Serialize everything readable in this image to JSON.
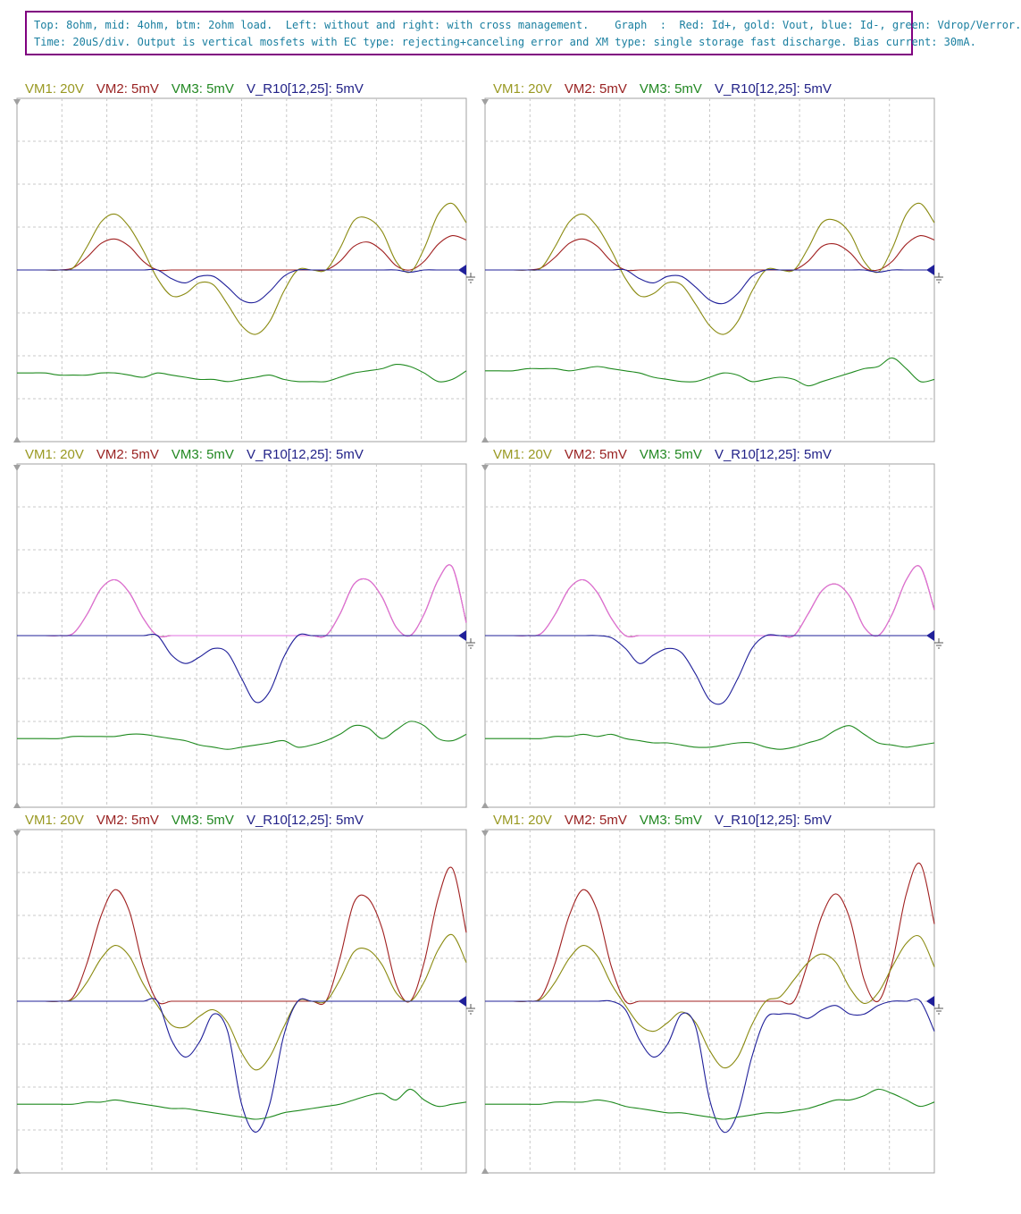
{
  "caption": {
    "line1": "Top: 8ohm, mid: 4ohm, btm: 2ohm load.  Left: without and right: with cross management.    Graph  :  Red: Id+, gold: Vout, blue: Id-, green: Vdrop/Verror.",
    "line2": "Time: 20uS/div. Output is vertical mosfets with EC type: rejecting+canceling error and XM type: single storage fast discharge. Bias current: 30mA."
  },
  "legend": [
    {
      "text": "VM1: 20V",
      "color": "#999922"
    },
    {
      "text": "VM2: 5mV",
      "color": "#992222"
    },
    {
      "text": "VM3: 5mV",
      "color": "#228822"
    },
    {
      "text": "V_R10[12,25]: 5mV",
      "color": "#222288"
    }
  ],
  "colors": {
    "red": "#a02020",
    "gold": "#8a8a10",
    "blue": "#20209a",
    "green": "#1f8a1f",
    "grid": "#c8c8c8",
    "pink": "#e070e0"
  },
  "chart_data": [
    {
      "type": "line",
      "panel": "top-left",
      "load": "8ohm",
      "cross_management": false,
      "x_divisions": 10,
      "y_divisions": 8,
      "zero_division": 4,
      "series": [
        {
          "color": "red",
          "values": [
            0,
            0,
            0,
            0,
            0.05,
            0.3,
            0.62,
            0.72,
            0.55,
            0.2,
            0,
            0,
            0,
            0,
            0,
            0,
            0,
            0,
            0,
            0,
            0,
            0,
            0,
            0.2,
            0.55,
            0.65,
            0.45,
            0.1,
            0,
            0.2,
            0.6,
            0.8,
            0.7
          ]
        },
        {
          "color": "gold",
          "values": [
            0,
            0,
            0,
            0,
            0.05,
            0.55,
            1.12,
            1.3,
            1.0,
            0.45,
            -0.2,
            -0.6,
            -0.55,
            -0.3,
            -0.35,
            -0.8,
            -1.3,
            -1.5,
            -1.2,
            -0.5,
            0,
            0,
            0,
            0.5,
            1.15,
            1.2,
            0.9,
            0.2,
            -0.05,
            0.5,
            1.3,
            1.55,
            1.1
          ]
        },
        {
          "color": "blue",
          "values": [
            0,
            0,
            0,
            0,
            0,
            0,
            0,
            0,
            0,
            0,
            0,
            -0.2,
            -0.3,
            -0.15,
            -0.15,
            -0.4,
            -0.7,
            -0.75,
            -0.5,
            -0.15,
            0,
            0,
            0,
            0,
            0,
            0,
            0,
            0,
            -0.05,
            0,
            0,
            0,
            0
          ]
        },
        {
          "color": "green",
          "values": [
            -2.4,
            -2.4,
            -2.4,
            -2.45,
            -2.45,
            -2.45,
            -2.4,
            -2.4,
            -2.45,
            -2.5,
            -2.4,
            -2.45,
            -2.5,
            -2.55,
            -2.55,
            -2.6,
            -2.55,
            -2.5,
            -2.45,
            -2.55,
            -2.6,
            -2.6,
            -2.6,
            -2.5,
            -2.4,
            -2.35,
            -2.3,
            -2.2,
            -2.25,
            -2.4,
            -2.6,
            -2.55,
            -2.35
          ]
        }
      ]
    },
    {
      "type": "line",
      "panel": "top-right",
      "load": "8ohm",
      "cross_management": true,
      "x_divisions": 10,
      "y_divisions": 8,
      "zero_division": 4,
      "series": [
        {
          "color": "red",
          "values": [
            0,
            0,
            0,
            0,
            0.05,
            0.3,
            0.62,
            0.72,
            0.55,
            0.2,
            0,
            0,
            0,
            0,
            0,
            0,
            0,
            0,
            0,
            0,
            0,
            0,
            0,
            0.2,
            0.55,
            0.6,
            0.4,
            0.05,
            0,
            0.2,
            0.6,
            0.8,
            0.7
          ]
        },
        {
          "color": "gold",
          "values": [
            0,
            0,
            0,
            0,
            0.05,
            0.55,
            1.12,
            1.3,
            1.0,
            0.45,
            -0.2,
            -0.6,
            -0.55,
            -0.3,
            -0.35,
            -0.8,
            -1.3,
            -1.5,
            -1.2,
            -0.5,
            0,
            0,
            0,
            0.5,
            1.1,
            1.15,
            0.85,
            0.2,
            -0.05,
            0.5,
            1.3,
            1.55,
            1.1
          ]
        },
        {
          "color": "blue",
          "values": [
            0,
            0,
            0,
            0,
            0,
            0,
            0,
            0,
            0,
            0,
            0,
            -0.2,
            -0.3,
            -0.15,
            -0.15,
            -0.4,
            -0.7,
            -0.78,
            -0.55,
            -0.15,
            0,
            0,
            0,
            0,
            0,
            0,
            0,
            0,
            -0.05,
            0,
            0,
            0,
            0
          ]
        },
        {
          "color": "green",
          "values": [
            -2.35,
            -2.35,
            -2.35,
            -2.3,
            -2.3,
            -2.3,
            -2.35,
            -2.3,
            -2.25,
            -2.3,
            -2.35,
            -2.4,
            -2.5,
            -2.55,
            -2.6,
            -2.6,
            -2.5,
            -2.4,
            -2.45,
            -2.6,
            -2.55,
            -2.5,
            -2.55,
            -2.7,
            -2.6,
            -2.5,
            -2.4,
            -2.3,
            -2.25,
            -2.05,
            -2.3,
            -2.6,
            -2.55
          ]
        }
      ]
    },
    {
      "type": "line",
      "panel": "middle-left",
      "load": "4ohm",
      "cross_management": false,
      "x_divisions": 10,
      "y_divisions": 8,
      "zero_division": 4,
      "series": [
        {
          "color": "red",
          "values": [
            0,
            0,
            0,
            0,
            0.05,
            0.5,
            1.1,
            1.3,
            1.0,
            0.4,
            0,
            0,
            0,
            0,
            0,
            0,
            0,
            0,
            0,
            0,
            0,
            0,
            0,
            0.5,
            1.2,
            1.3,
            0.9,
            0.2,
            0,
            0.5,
            1.3,
            1.6,
            0.3
          ]
        },
        {
          "color": "pink",
          "values": [
            0,
            0,
            0,
            0,
            0.05,
            0.5,
            1.1,
            1.3,
            1.0,
            0.4,
            0,
            0,
            0,
            0,
            0,
            0,
            0,
            0,
            0,
            0,
            0,
            0,
            0,
            0.5,
            1.2,
            1.3,
            0.9,
            0.2,
            0,
            0.5,
            1.3,
            1.6,
            0.3
          ]
        },
        {
          "color": "blue",
          "values": [
            0,
            0,
            0,
            0,
            0,
            0,
            0,
            0,
            0,
            0,
            0,
            -0.45,
            -0.65,
            -0.5,
            -0.3,
            -0.4,
            -1.0,
            -1.55,
            -1.3,
            -0.5,
            0,
            0,
            0,
            0,
            0,
            0,
            0,
            0,
            0,
            0,
            0,
            0,
            0
          ]
        },
        {
          "color": "green",
          "values": [
            -2.4,
            -2.4,
            -2.4,
            -2.4,
            -2.35,
            -2.35,
            -2.35,
            -2.35,
            -2.3,
            -2.3,
            -2.35,
            -2.4,
            -2.45,
            -2.55,
            -2.6,
            -2.65,
            -2.6,
            -2.55,
            -2.5,
            -2.45,
            -2.6,
            -2.55,
            -2.45,
            -2.3,
            -2.1,
            -2.15,
            -2.4,
            -2.2,
            -2.0,
            -2.1,
            -2.4,
            -2.45,
            -2.3
          ]
        }
      ]
    },
    {
      "type": "line",
      "panel": "middle-right",
      "load": "4ohm",
      "cross_management": true,
      "x_divisions": 10,
      "y_divisions": 8,
      "zero_division": 4,
      "series": [
        {
          "color": "red",
          "values": [
            0,
            0,
            0,
            0,
            0.05,
            0.5,
            1.1,
            1.3,
            1.0,
            0.4,
            0,
            0,
            0,
            0,
            0,
            0,
            0,
            0,
            0,
            0,
            0,
            0,
            0,
            0.5,
            1.05,
            1.2,
            0.9,
            0.2,
            0,
            0.5,
            1.3,
            1.6,
            0.6
          ]
        },
        {
          "color": "pink",
          "values": [
            0,
            0,
            0,
            0,
            0.05,
            0.5,
            1.1,
            1.3,
            1.0,
            0.4,
            0,
            0,
            0,
            0,
            0,
            0,
            0,
            0,
            0,
            0,
            0,
            0,
            0,
            0.5,
            1.05,
            1.2,
            0.9,
            0.2,
            0,
            0.5,
            1.3,
            1.6,
            0.6
          ]
        },
        {
          "color": "blue",
          "values": [
            0,
            0,
            0,
            0,
            0,
            0,
            0,
            0,
            0,
            -0.05,
            -0.3,
            -0.65,
            -0.45,
            -0.3,
            -0.4,
            -0.9,
            -1.5,
            -1.55,
            -1.0,
            -0.3,
            0,
            0,
            0,
            0,
            0,
            0,
            0,
            0,
            0,
            0,
            0,
            0,
            0
          ]
        },
        {
          "color": "green",
          "values": [
            -2.4,
            -2.4,
            -2.4,
            -2.4,
            -2.4,
            -2.35,
            -2.35,
            -2.3,
            -2.35,
            -2.3,
            -2.4,
            -2.45,
            -2.5,
            -2.5,
            -2.55,
            -2.6,
            -2.6,
            -2.55,
            -2.5,
            -2.5,
            -2.6,
            -2.65,
            -2.6,
            -2.5,
            -2.4,
            -2.2,
            -2.1,
            -2.3,
            -2.5,
            -2.55,
            -2.6,
            -2.55,
            -2.5
          ]
        }
      ]
    },
    {
      "type": "line",
      "panel": "bottom-left",
      "load": "2ohm",
      "cross_management": false,
      "x_divisions": 10,
      "y_divisions": 8,
      "zero_division": 4,
      "series": [
        {
          "color": "red",
          "values": [
            0,
            0,
            0,
            0,
            0.1,
            0.9,
            2.0,
            2.6,
            2.1,
            0.8,
            0,
            0,
            0,
            0,
            0,
            0,
            0,
            0,
            0,
            0,
            0,
            0,
            0,
            1.0,
            2.3,
            2.4,
            1.7,
            0.4,
            0,
            0.9,
            2.4,
            3.1,
            1.6
          ]
        },
        {
          "color": "gold",
          "values": [
            0,
            0,
            0,
            0,
            0.05,
            0.45,
            1.0,
            1.3,
            1.05,
            0.4,
            -0.1,
            -0.55,
            -0.6,
            -0.35,
            -0.2,
            -0.5,
            -1.2,
            -1.6,
            -1.3,
            -0.6,
            0,
            0,
            0,
            0.5,
            1.15,
            1.2,
            0.85,
            0.2,
            0,
            0.45,
            1.2,
            1.55,
            0.9
          ]
        },
        {
          "color": "blue",
          "values": [
            0,
            0,
            0,
            0,
            0,
            0,
            0,
            0,
            0,
            0,
            0,
            -0.9,
            -1.3,
            -0.95,
            -0.3,
            -0.7,
            -2.4,
            -3.05,
            -2.4,
            -0.8,
            0,
            0,
            0,
            0,
            0,
            0,
            0,
            0,
            0,
            0,
            0,
            0,
            0
          ]
        },
        {
          "color": "green",
          "values": [
            -2.4,
            -2.4,
            -2.4,
            -2.4,
            -2.4,
            -2.35,
            -2.35,
            -2.3,
            -2.35,
            -2.4,
            -2.45,
            -2.5,
            -2.5,
            -2.55,
            -2.6,
            -2.65,
            -2.7,
            -2.75,
            -2.7,
            -2.6,
            -2.55,
            -2.5,
            -2.45,
            -2.4,
            -2.3,
            -2.2,
            -2.15,
            -2.3,
            -2.05,
            -2.3,
            -2.45,
            -2.4,
            -2.35
          ]
        }
      ]
    },
    {
      "type": "line",
      "panel": "bottom-right",
      "load": "2ohm",
      "cross_management": true,
      "x_divisions": 10,
      "y_divisions": 8,
      "zero_division": 4,
      "series": [
        {
          "color": "red",
          "values": [
            0,
            0,
            0,
            0,
            0.1,
            0.9,
            2.0,
            2.6,
            2.1,
            0.8,
            0,
            0,
            0,
            0,
            0,
            0,
            0,
            0,
            0,
            0,
            0,
            0,
            0,
            0.9,
            2.0,
            2.5,
            1.9,
            0.5,
            0,
            0.9,
            2.5,
            3.2,
            1.8
          ]
        },
        {
          "color": "gold",
          "values": [
            0,
            0,
            0,
            0,
            0.05,
            0.45,
            1.0,
            1.3,
            1.05,
            0.4,
            -0.1,
            -0.55,
            -0.7,
            -0.5,
            -0.25,
            -0.5,
            -1.15,
            -1.55,
            -1.3,
            -0.55,
            0,
            0.1,
            0.5,
            0.9,
            1.1,
            0.9,
            0.3,
            -0.05,
            0.2,
            0.8,
            1.35,
            1.5,
            0.8
          ]
        },
        {
          "color": "blue",
          "values": [
            0,
            0,
            0,
            0,
            0,
            0,
            0,
            0,
            0,
            0,
            -0.2,
            -0.9,
            -1.3,
            -1.0,
            -0.3,
            -0.6,
            -2.3,
            -3.05,
            -2.6,
            -1.3,
            -0.4,
            -0.3,
            -0.3,
            -0.4,
            -0.2,
            -0.1,
            -0.3,
            -0.3,
            -0.1,
            0,
            0,
            0,
            -0.7
          ]
        },
        {
          "color": "green",
          "values": [
            -2.4,
            -2.4,
            -2.4,
            -2.4,
            -2.4,
            -2.35,
            -2.35,
            -2.35,
            -2.3,
            -2.35,
            -2.45,
            -2.5,
            -2.55,
            -2.6,
            -2.6,
            -2.65,
            -2.7,
            -2.75,
            -2.7,
            -2.65,
            -2.6,
            -2.6,
            -2.55,
            -2.5,
            -2.4,
            -2.3,
            -2.3,
            -2.2,
            -2.05,
            -2.15,
            -2.3,
            -2.45,
            -2.35
          ]
        }
      ]
    }
  ]
}
